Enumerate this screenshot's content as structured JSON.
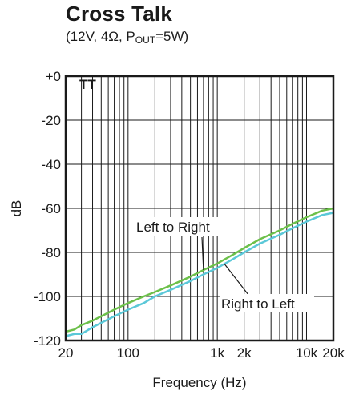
{
  "chart_data": {
    "type": "line",
    "title": "Cross Talk",
    "subtitle": {
      "prefix": "(12V, 4Ω, P",
      "sub": "OUT",
      "suffix": "=5W)"
    },
    "xlabel": "Frequency (Hz)",
    "ylabel": "dB",
    "xscale": "log",
    "xlim": [
      20,
      20000
    ],
    "ylim": [
      -120,
      0
    ],
    "grid": true,
    "x_ticks": [
      {
        "value": 20,
        "label": "20"
      },
      {
        "value": 100,
        "label": "100"
      },
      {
        "value": 1000,
        "label": "1k"
      },
      {
        "value": 2000,
        "label": "2k"
      },
      {
        "value": 10000,
        "label": "10k"
      },
      {
        "value": 20000,
        "label": "20k"
      }
    ],
    "y_ticks": [
      {
        "value": 0,
        "label": "+0"
      },
      {
        "value": -20,
        "label": "-20"
      },
      {
        "value": -40,
        "label": "-40"
      },
      {
        "value": -60,
        "label": "-60"
      },
      {
        "value": -80,
        "label": "-80"
      },
      {
        "value": -100,
        "label": "-100"
      },
      {
        "value": -120,
        "label": "-120"
      }
    ],
    "series": [
      {
        "name": "Left to Right",
        "color": "#6cc04a",
        "x": [
          20,
          25,
          30,
          40,
          50,
          70,
          100,
          150,
          200,
          300,
          500,
          700,
          1000,
          1500,
          2000,
          3000,
          5000,
          7000,
          10000,
          15000,
          20000
        ],
        "values": [
          -116,
          -115,
          -113,
          -111,
          -109,
          -106,
          -103,
          -100,
          -98,
          -95,
          -91,
          -88,
          -85,
          -81,
          -78,
          -74,
          -70,
          -67,
          -64,
          -61,
          -60
        ]
      },
      {
        "name": "Right to Left",
        "color": "#5bc8d8",
        "x": [
          20,
          25,
          30,
          40,
          50,
          70,
          100,
          150,
          200,
          300,
          500,
          700,
          1000,
          1500,
          2000,
          3000,
          5000,
          7000,
          10000,
          15000,
          20000
        ],
        "values": [
          -118,
          -117,
          -117,
          -114,
          -112,
          -109,
          -106,
          -103,
          -100,
          -97,
          -93,
          -90,
          -87,
          -83,
          -80,
          -76,
          -72,
          -69,
          -66,
          -63,
          -62
        ]
      }
    ],
    "annotations": [
      {
        "text": "Left to Right",
        "series": 0
      },
      {
        "text": "Right to Left",
        "series": 1
      }
    ],
    "marker_text": "TT"
  }
}
